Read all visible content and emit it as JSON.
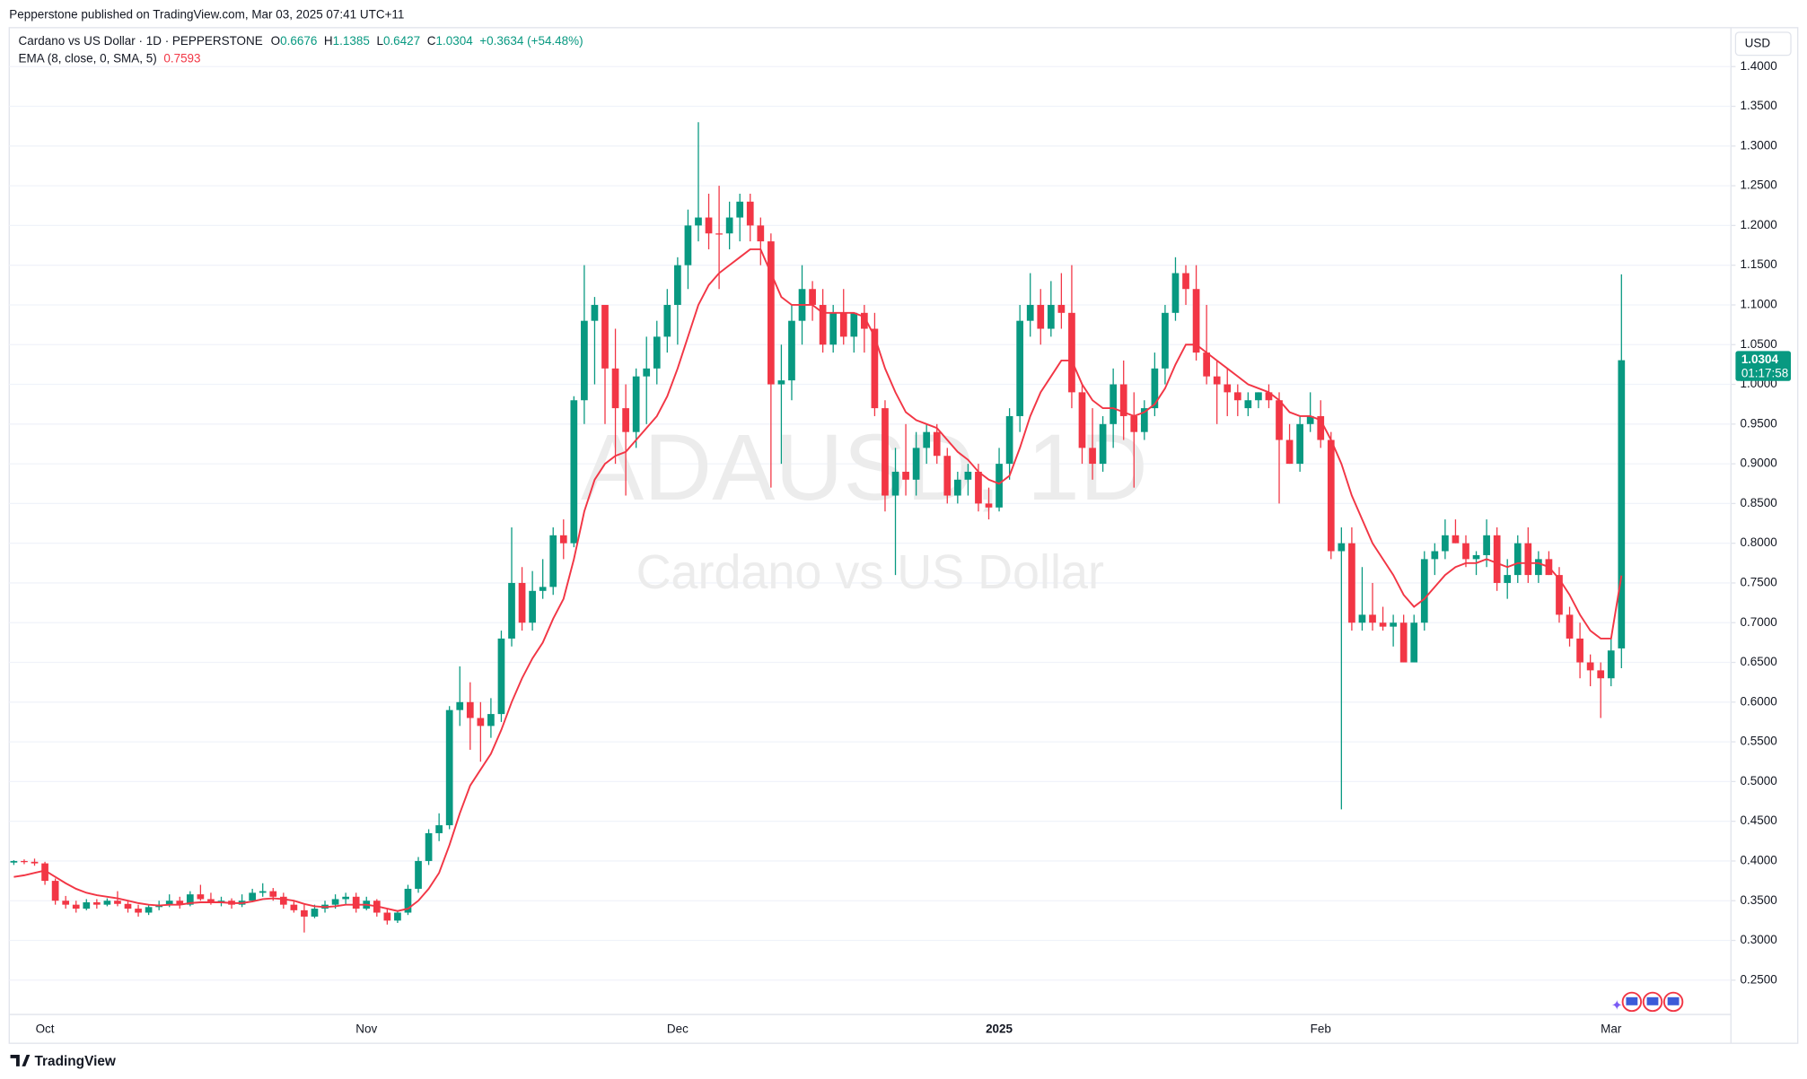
{
  "header": "Pepperstone published on TradingView.com, Mar 03, 2025 07:41 UTC+11",
  "footer": "TradingView",
  "chart_data": {
    "type": "candlestick",
    "title": "Cardano vs US Dollar · 1D · PEPPERSTONE",
    "watermark": "ADAUSD, 1D",
    "watermark_subtitle": "Cardano vs US Dollar",
    "currency": "USD",
    "ohlc_labels": [
      "O",
      "H",
      "L",
      "C"
    ],
    "change": "+0.3634 (+54.48%)",
    "countdown": "01:17:58",
    "up_color": "#089981",
    "down_color": "#f23645",
    "grid": true,
    "categories": [
      null,
      null,
      null,
      "Oct",
      null,
      null,
      null,
      null,
      null,
      null,
      null,
      null,
      null,
      null,
      null,
      null,
      null,
      null,
      null,
      null,
      null,
      null,
      null,
      null,
      null,
      null,
      null,
      null,
      null,
      null,
      null,
      null,
      null,
      null,
      "Nov",
      null,
      null,
      null,
      null,
      null,
      null,
      null,
      null,
      null,
      null,
      null,
      null,
      null,
      null,
      null,
      null,
      null,
      null,
      null,
      null,
      null,
      null,
      null,
      null,
      null,
      null,
      null,
      null,
      null,
      "Dec",
      null,
      null,
      null,
      null,
      null,
      null,
      null,
      null,
      null,
      null,
      null,
      null,
      null,
      null,
      null,
      null,
      null,
      null,
      null,
      null,
      null,
      null,
      null,
      null,
      null,
      null,
      null,
      null,
      null,
      null,
      "2025",
      null,
      null,
      null,
      null,
      null,
      null,
      null,
      null,
      null,
      null,
      null,
      null,
      null,
      null,
      null,
      null,
      null,
      null,
      null,
      null,
      null,
      null,
      null,
      null,
      null,
      null,
      null,
      null,
      null,
      null,
      "Feb",
      null,
      null,
      null,
      null,
      null,
      null,
      null,
      null,
      null,
      null,
      null,
      null,
      null,
      null,
      null,
      null,
      null,
      null,
      null,
      null,
      null,
      null,
      null,
      null,
      null,
      null,
      null,
      "Mar",
      null
    ],
    "open": [
      0.398,
      0.4,
      0.399,
      0.397,
      0.375,
      0.35,
      0.345,
      0.34,
      0.348,
      0.345,
      0.35,
      0.346,
      0.34,
      0.335,
      0.342,
      0.345,
      0.35,
      0.345,
      0.358,
      0.352,
      0.348,
      0.35,
      0.345,
      0.35,
      0.36,
      0.362,
      0.355,
      0.345,
      0.338,
      0.33,
      0.34,
      0.345,
      0.352,
      0.355,
      0.34,
      0.35,
      0.335,
      0.325,
      0.335,
      0.365,
      0.4,
      0.435,
      0.445,
      0.59,
      0.6,
      0.58,
      0.57,
      0.585,
      0.68,
      0.75,
      0.7,
      0.74,
      0.745,
      0.81,
      0.8,
      0.98,
      1.08,
      1.1,
      1.02,
      0.97,
      0.94,
      1.01,
      1.02,
      1.06,
      1.1,
      1.15,
      1.2,
      1.21,
      1.19,
      1.19,
      1.21,
      1.23,
      1.2,
      1.18,
      1.0,
      1.005,
      1.08,
      1.12,
      1.1,
      1.05,
      1.09,
      1.06,
      1.09,
      1.07,
      0.97,
      0.86,
      0.89,
      0.88,
      0.92,
      0.94,
      0.91,
      0.86,
      0.88,
      0.89,
      0.85,
      0.845,
      0.9,
      0.96,
      1.08,
      1.1,
      1.07,
      1.1,
      1.09,
      0.99,
      0.92,
      0.9,
      0.95,
      1.0,
      0.96,
      0.94,
      0.97,
      1.02,
      1.09,
      1.14,
      1.12,
      1.04,
      1.01,
      1.0,
      0.99,
      0.97,
      0.98,
      0.99,
      0.98,
      0.93,
      0.9,
      0.95,
      0.96,
      0.93,
      0.79,
      0.8,
      0.7,
      0.71,
      0.7,
      0.695,
      0.7,
      0.65,
      0.7,
      0.78,
      0.79,
      0.81,
      0.8,
      0.78,
      0.785,
      0.81,
      0.75,
      0.76,
      0.8,
      0.76,
      0.78,
      0.76,
      0.71,
      0.68,
      0.65,
      0.64,
      0.63,
      0.6676
    ],
    "high": [
      0.401,
      0.402,
      0.403,
      0.399,
      0.378,
      0.356,
      0.35,
      0.352,
      0.352,
      0.353,
      0.362,
      0.35,
      0.345,
      0.345,
      0.35,
      0.358,
      0.355,
      0.362,
      0.37,
      0.36,
      0.355,
      0.353,
      0.358,
      0.365,
      0.372,
      0.366,
      0.36,
      0.35,
      0.345,
      0.345,
      0.35,
      0.358,
      0.36,
      0.36,
      0.355,
      0.352,
      0.34,
      0.338,
      0.37,
      0.405,
      0.44,
      0.46,
      0.595,
      0.645,
      0.625,
      0.6,
      0.605,
      0.69,
      0.82,
      0.77,
      0.765,
      0.78,
      0.82,
      0.83,
      0.985,
      1.15,
      1.11,
      1.1,
      1.07,
      1.0,
      1.02,
      1.06,
      1.08,
      1.12,
      1.16,
      1.22,
      1.33,
      1.24,
      1.25,
      1.23,
      1.24,
      1.24,
      1.21,
      1.19,
      1.05,
      1.1,
      1.15,
      1.13,
      1.12,
      1.1,
      1.12,
      1.09,
      1.1,
      1.09,
      0.98,
      0.92,
      0.95,
      0.94,
      0.95,
      0.95,
      0.92,
      0.89,
      0.9,
      0.9,
      0.87,
      0.92,
      0.97,
      1.1,
      1.14,
      1.12,
      1.13,
      1.14,
      1.15,
      1.0,
      0.97,
      0.96,
      1.02,
      1.03,
      0.99,
      0.98,
      1.04,
      1.1,
      1.16,
      1.15,
      1.15,
      1.1,
      1.03,
      1.02,
      1.0,
      0.99,
      0.99,
      1.0,
      0.99,
      0.95,
      0.96,
      0.99,
      0.98,
      0.94,
      0.82,
      0.82,
      0.77,
      0.75,
      0.72,
      0.71,
      0.71,
      0.71,
      0.79,
      0.8,
      0.83,
      0.83,
      0.81,
      0.79,
      0.83,
      0.82,
      0.78,
      0.81,
      0.82,
      0.79,
      0.79,
      0.77,
      0.72,
      0.7,
      0.66,
      0.65,
      0.68,
      1.1385
    ],
    "low": [
      0.395,
      0.396,
      0.394,
      0.37,
      0.345,
      0.34,
      0.335,
      0.338,
      0.34,
      0.343,
      0.343,
      0.335,
      0.33,
      0.332,
      0.338,
      0.342,
      0.34,
      0.343,
      0.35,
      0.345,
      0.343,
      0.34,
      0.342,
      0.348,
      0.355,
      0.35,
      0.34,
      0.335,
      0.31,
      0.328,
      0.335,
      0.34,
      0.345,
      0.335,
      0.338,
      0.33,
      0.32,
      0.322,
      0.332,
      0.36,
      0.395,
      0.425,
      0.44,
      0.57,
      0.54,
      0.525,
      0.555,
      0.575,
      0.67,
      0.69,
      0.69,
      0.73,
      0.735,
      0.78,
      0.795,
      0.95,
      1.0,
      0.95,
      0.9,
      0.86,
      0.92,
      0.95,
      1.0,
      1.04,
      1.05,
      1.12,
      1.18,
      1.17,
      1.12,
      1.17,
      1.18,
      1.18,
      1.15,
      0.87,
      0.9,
      0.98,
      1.05,
      1.08,
      1.04,
      1.04,
      1.05,
      1.04,
      1.04,
      0.96,
      0.84,
      0.76,
      0.86,
      0.86,
      0.9,
      0.9,
      0.85,
      0.85,
      0.86,
      0.84,
      0.83,
      0.84,
      0.88,
      0.94,
      1.06,
      1.05,
      1.06,
      1.07,
      0.97,
      0.9,
      0.88,
      0.89,
      0.92,
      0.93,
      0.87,
      0.93,
      0.96,
      1.0,
      1.08,
      1.1,
      1.03,
      1.0,
      0.95,
      0.96,
      0.96,
      0.96,
      0.97,
      0.97,
      0.85,
      0.9,
      0.89,
      0.94,
      0.92,
      0.78,
      0.465,
      0.69,
      0.69,
      0.69,
      0.69,
      0.67,
      0.65,
      0.65,
      0.69,
      0.76,
      0.78,
      0.8,
      0.77,
      0.76,
      0.77,
      0.74,
      0.73,
      0.75,
      0.75,
      0.75,
      0.76,
      0.7,
      0.67,
      0.63,
      0.62,
      0.58,
      0.62,
      0.6427
    ],
    "close": [
      0.4,
      0.399,
      0.397,
      0.375,
      0.35,
      0.345,
      0.34,
      0.348,
      0.345,
      0.35,
      0.346,
      0.34,
      0.335,
      0.342,
      0.345,
      0.35,
      0.345,
      0.358,
      0.352,
      0.348,
      0.35,
      0.345,
      0.35,
      0.36,
      0.362,
      0.355,
      0.345,
      0.338,
      0.33,
      0.34,
      0.345,
      0.352,
      0.355,
      0.34,
      0.35,
      0.335,
      0.325,
      0.335,
      0.365,
      0.4,
      0.435,
      0.445,
      0.59,
      0.6,
      0.58,
      0.57,
      0.585,
      0.68,
      0.75,
      0.7,
      0.74,
      0.745,
      0.81,
      0.8,
      0.98,
      1.08,
      1.1,
      1.02,
      0.97,
      0.94,
      1.01,
      1.02,
      1.06,
      1.1,
      1.15,
      1.2,
      1.21,
      1.19,
      1.19,
      1.21,
      1.23,
      1.2,
      1.18,
      1.0,
      1.005,
      1.08,
      1.12,
      1.1,
      1.05,
      1.09,
      1.06,
      1.09,
      1.07,
      0.97,
      0.86,
      0.89,
      0.88,
      0.92,
      0.94,
      0.91,
      0.86,
      0.88,
      0.89,
      0.85,
      0.845,
      0.9,
      0.96,
      1.08,
      1.1,
      1.07,
      1.1,
      1.09,
      0.99,
      0.92,
      0.9,
      0.95,
      1.0,
      0.96,
      0.94,
      0.97,
      1.02,
      1.09,
      1.14,
      1.12,
      1.04,
      1.01,
      1.0,
      0.99,
      0.98,
      0.98,
      0.99,
      0.98,
      0.93,
      0.9,
      0.95,
      0.96,
      0.93,
      0.79,
      0.8,
      0.7,
      0.71,
      0.7,
      0.695,
      0.7,
      0.65,
      0.7,
      0.78,
      0.79,
      0.81,
      0.8,
      0.78,
      0.785,
      0.81,
      0.75,
      0.76,
      0.8,
      0.76,
      0.78,
      0.76,
      0.71,
      0.68,
      0.65,
      0.64,
      0.63,
      0.665,
      1.0304
    ],
    "series": [
      {
        "name": "EMA (8, close, 0, SMA, 5)",
        "color": "#f23645",
        "values": [
          0.38,
          0.382,
          0.385,
          0.388,
          0.38,
          0.372,
          0.365,
          0.36,
          0.357,
          0.355,
          0.353,
          0.35,
          0.347,
          0.345,
          0.344,
          0.345,
          0.345,
          0.347,
          0.348,
          0.348,
          0.348,
          0.347,
          0.347,
          0.349,
          0.352,
          0.353,
          0.352,
          0.35,
          0.346,
          0.343,
          0.342,
          0.343,
          0.345,
          0.345,
          0.345,
          0.343,
          0.34,
          0.337,
          0.34,
          0.35,
          0.365,
          0.385,
          0.42,
          0.46,
          0.495,
          0.515,
          0.535,
          0.565,
          0.6,
          0.63,
          0.655,
          0.675,
          0.705,
          0.73,
          0.78,
          0.84,
          0.88,
          0.9,
          0.91,
          0.915,
          0.93,
          0.945,
          0.96,
          0.985,
          1.02,
          1.06,
          1.1,
          1.125,
          1.14,
          1.15,
          1.16,
          1.17,
          1.17,
          1.14,
          1.11,
          1.1,
          1.1,
          1.1,
          1.09,
          1.09,
          1.09,
          1.09,
          1.085,
          1.06,
          1.02,
          0.99,
          0.965,
          0.955,
          0.95,
          0.945,
          0.93,
          0.915,
          0.905,
          0.89,
          0.88,
          0.875,
          0.885,
          0.92,
          0.96,
          0.99,
          1.01,
          1.03,
          1.03,
          1.0,
          0.98,
          0.97,
          0.97,
          0.965,
          0.96,
          0.965,
          0.975,
          0.995,
          1.025,
          1.05,
          1.05,
          1.04,
          1.03,
          1.02,
          1.01,
          1.0,
          0.995,
          0.99,
          0.98,
          0.965,
          0.96,
          0.96,
          0.955,
          0.93,
          0.9,
          0.86,
          0.83,
          0.8,
          0.78,
          0.76,
          0.735,
          0.72,
          0.73,
          0.745,
          0.76,
          0.77,
          0.775,
          0.775,
          0.78,
          0.775,
          0.77,
          0.775,
          0.775,
          0.775,
          0.77,
          0.755,
          0.735,
          0.71,
          0.69,
          0.68,
          0.68,
          0.7593
        ]
      }
    ],
    "ylim": [
      0.172,
      1.449
    ],
    "yticks": [
      {
        "value": 0.25,
        "label": "0.2500"
      },
      {
        "value": 0.3,
        "label": "0.3000"
      },
      {
        "value": 0.35,
        "label": "0.3500"
      },
      {
        "value": 0.4,
        "label": "0.4000"
      },
      {
        "value": 0.45,
        "label": "0.4500"
      },
      {
        "value": 0.5,
        "label": "0.5000"
      },
      {
        "value": 0.55,
        "label": "0.5500"
      },
      {
        "value": 0.6,
        "label": "0.6000"
      },
      {
        "value": 0.65,
        "label": "0.6500"
      },
      {
        "value": 0.7,
        "label": "0.7000"
      },
      {
        "value": 0.75,
        "label": "0.7500"
      },
      {
        "value": 0.8,
        "label": "0.8000"
      },
      {
        "value": 0.85,
        "label": "0.8500"
      },
      {
        "value": 0.9,
        "label": "0.9000"
      },
      {
        "value": 0.95,
        "label": "0.9500"
      },
      {
        "value": 1.0,
        "label": "1.0000"
      },
      {
        "value": 1.05,
        "label": "1.0500"
      },
      {
        "value": 1.1,
        "label": "1.1000"
      },
      {
        "value": 1.15,
        "label": "1.1500"
      },
      {
        "value": 1.2,
        "label": "1.2000"
      },
      {
        "value": 1.25,
        "label": "1.2500"
      },
      {
        "value": 1.3,
        "label": "1.3000"
      },
      {
        "value": 1.35,
        "label": "1.3500"
      },
      {
        "value": 1.4,
        "label": "1.4000"
      }
    ]
  }
}
